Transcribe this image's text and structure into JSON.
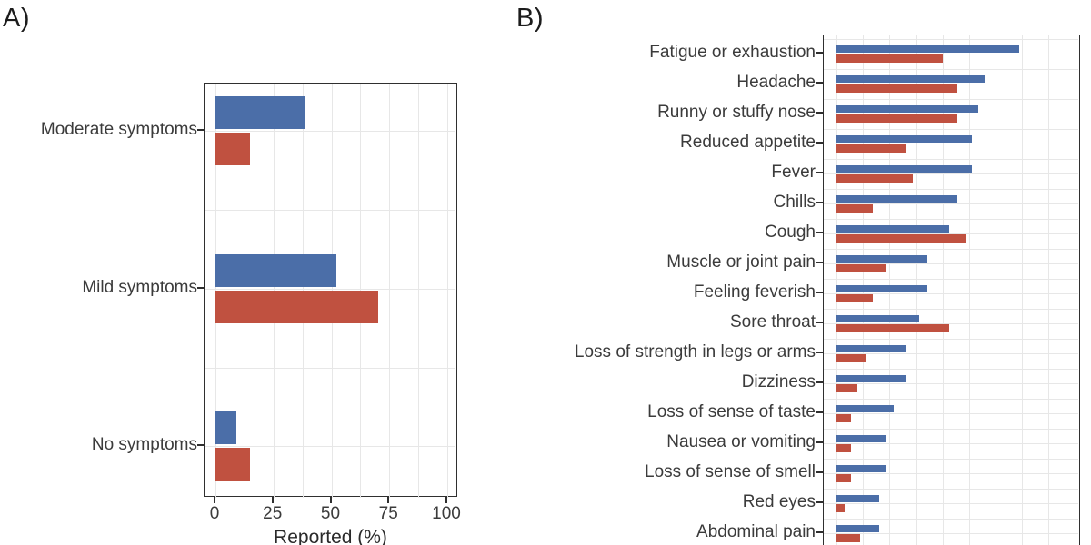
{
  "panels": {
    "a": {
      "label": "A)"
    },
    "b": {
      "label": "B)"
    }
  },
  "chart_data": [
    {
      "id": "A",
      "type": "bar",
      "orientation": "horizontal",
      "title": "",
      "categories": [
        "Moderate symptoms",
        "Mild symptoms",
        "No symptoms"
      ],
      "series": [
        {
          "name": "blue",
          "color": "#4B6EA8",
          "values": [
            39,
            52,
            9
          ]
        },
        {
          "name": "red",
          "color": "#C05140",
          "values": [
            15,
            70,
            15
          ]
        }
      ],
      "xlabel": "Reported (%)",
      "xlim": [
        0,
        100
      ],
      "xticks": [
        0,
        25,
        50,
        75,
        100
      ],
      "xtick_labels": [
        "0",
        "25",
        "50",
        "75",
        "100"
      ],
      "grid_step": 12.5,
      "grid": true,
      "legend": "none"
    },
    {
      "id": "B",
      "type": "bar",
      "orientation": "horizontal",
      "title": "",
      "categories": [
        "Fatigue or exhaustion",
        "Headache",
        "Runny or stuffy nose",
        "Reduced appetite",
        "Fever",
        "Chills",
        "Cough",
        "Muscle or joint pain",
        "Feeling feverish",
        "Sore throat",
        "Loss of strength in legs or arms",
        "Dizziness",
        "Loss of sense of taste",
        "Nausea or vomiting",
        "Loss of sense of smell",
        "Red eyes",
        "Abdominal pain"
      ],
      "series": [
        {
          "name": "blue",
          "color": "#4B6EA8",
          "values": [
            86,
            70,
            67,
            64,
            64,
            57,
            53,
            43,
            43,
            39,
            33,
            33,
            27,
            23,
            23,
            20,
            20
          ]
        },
        {
          "name": "red",
          "color": "#C05140",
          "values": [
            50,
            57,
            57,
            33,
            36,
            17,
            61,
            23,
            17,
            53,
            14,
            10,
            7,
            7,
            7,
            4,
            11
          ]
        }
      ],
      "xlabel": "",
      "xlim": [
        0,
        115
      ],
      "xticks": [],
      "xtick_labels": [],
      "grid_step": 12.5,
      "grid": true,
      "legend": "none"
    }
  ]
}
